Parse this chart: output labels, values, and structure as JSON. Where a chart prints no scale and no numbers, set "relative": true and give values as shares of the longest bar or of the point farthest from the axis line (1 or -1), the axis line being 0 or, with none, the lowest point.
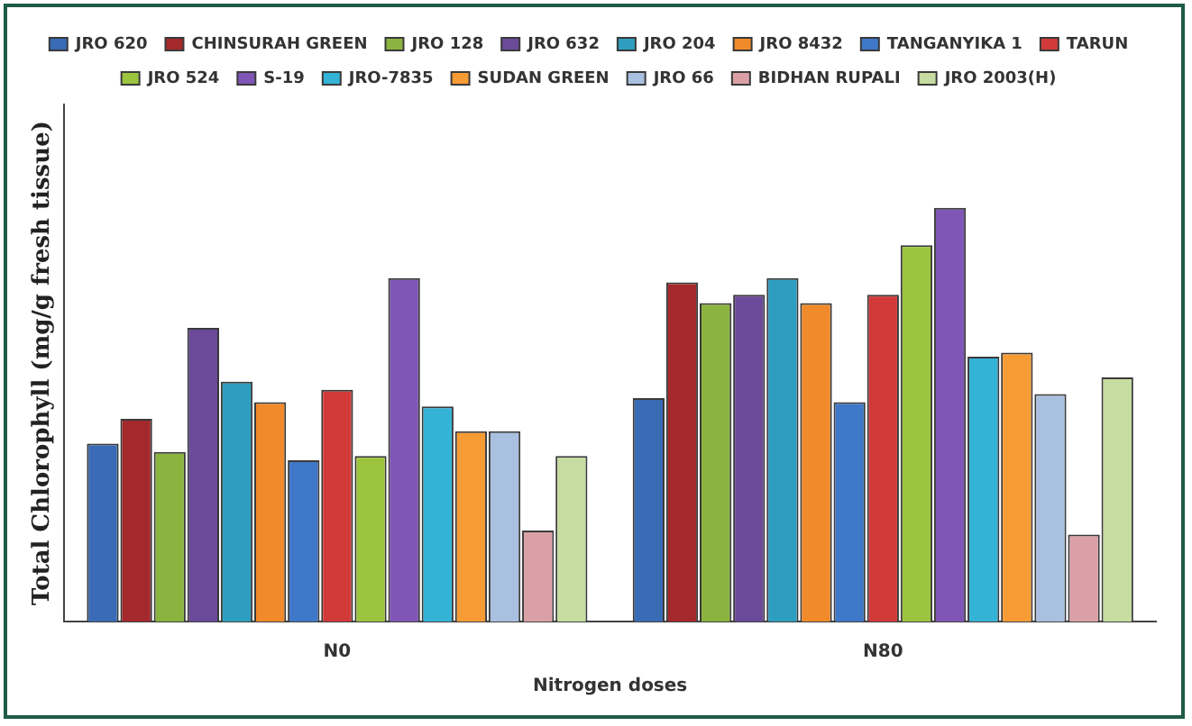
{
  "chart_data": {
    "type": "bar",
    "relative": true,
    "xlabel": "Nitrogen doses",
    "ylabel": "Total Chlorophyll (mg/g fresh tissue)",
    "categories": [
      "N0",
      "N80"
    ],
    "legend": "top",
    "grid": false,
    "series": [
      {
        "name": "JRO 620",
        "color": "#3a6bb5",
        "values": [
          0.43,
          0.54
        ]
      },
      {
        "name": "CHINSURAH GREEN",
        "color": "#a3292c",
        "values": [
          0.49,
          0.82
        ]
      },
      {
        "name": "JRO 128",
        "color": "#8bb340",
        "values": [
          0.41,
          0.77
        ]
      },
      {
        "name": "JRO 632",
        "color": "#6b4a9a",
        "values": [
          0.71,
          0.79
        ]
      },
      {
        "name": "JRO 204",
        "color": "#2e9ec0",
        "values": [
          0.58,
          0.83
        ]
      },
      {
        "name": "JRO 8432",
        "color": "#f08a2a",
        "values": [
          0.53,
          0.77
        ]
      },
      {
        "name": "TANGANYIKA 1",
        "color": "#3f78c8",
        "values": [
          0.39,
          0.53
        ]
      },
      {
        "name": "TARUN",
        "color": "#d23a3a",
        "values": [
          0.56,
          0.79
        ]
      },
      {
        "name": "JRO 524",
        "color": "#9cc43f",
        "values": [
          0.4,
          0.91
        ]
      },
      {
        "name": "S-19",
        "color": "#7f55b5",
        "values": [
          0.83,
          1
        ]
      },
      {
        "name": "JRO-7835",
        "color": "#35b3d6",
        "values": [
          0.52,
          0.64
        ]
      },
      {
        "name": "SUDAN GREEN",
        "color": "#f79b35",
        "values": [
          0.46,
          0.65
        ]
      },
      {
        "name": "JRO 66",
        "color": "#a9c0e0",
        "values": [
          0.46,
          0.55
        ]
      },
      {
        "name": "BIDHAN RUPALI",
        "color": "#dba0a6",
        "values": [
          0.22,
          0.21
        ]
      },
      {
        "name": "JRO 2003(H)",
        "color": "#c6dca0",
        "values": [
          0.4,
          0.59
        ]
      }
    ]
  }
}
